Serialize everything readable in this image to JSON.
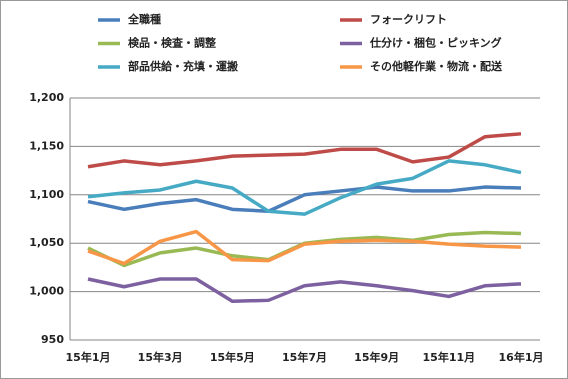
{
  "chart_data": {
    "type": "line",
    "categories": [
      "15年1月",
      null,
      "15年3月",
      null,
      "15年5月",
      null,
      "15年7月",
      null,
      "15年9月",
      null,
      "15年11月",
      null,
      "16年1月"
    ],
    "series": [
      {
        "name": "全職種",
        "color": "#4a7ebb",
        "values": [
          1093,
          1085,
          1091,
          1095,
          1085,
          1083,
          1100,
          1104,
          1108,
          1104,
          1104,
          1108,
          1107
        ]
      },
      {
        "name": "フォークリフト",
        "color": "#be4b48",
        "values": [
          1129,
          1135,
          1131,
          1135,
          1140,
          1141,
          1142,
          1147,
          1147,
          1134,
          1139,
          1160,
          1163
        ]
      },
      {
        "name": "検品・検査・調整",
        "color": "#98b954",
        "values": [
          1045,
          1027,
          1040,
          1045,
          1037,
          1033,
          1050,
          1054,
          1056,
          1053,
          1059,
          1061,
          1060
        ]
      },
      {
        "name": "仕分け・梱包・ピッキング",
        "color": "#7d60a0",
        "values": [
          1013,
          1005,
          1013,
          1013,
          990,
          991,
          1006,
          1010,
          1006,
          1001,
          995,
          1006,
          1008
        ]
      },
      {
        "name": "部品供給・充填・運搬",
        "color": "#46aac5",
        "values": [
          1098,
          1102,
          1105,
          1114,
          1107,
          1083,
          1080,
          1097,
          1111,
          1117,
          1135,
          1131,
          1123
        ]
      },
      {
        "name": "その他軽作業・物流・配送",
        "color": "#f79646",
        "values": [
          1042,
          1029,
          1052,
          1062,
          1033,
          1032,
          1049,
          1052,
          1053,
          1052,
          1049,
          1047,
          1046
        ]
      }
    ],
    "ylim": [
      950,
      1200
    ],
    "yticks": [
      950,
      {
        "value": 1000,
        "label": "1,000"
      },
      {
        "value": 1050,
        "label": "1,050"
      },
      {
        "value": 1100,
        "label": "1,100"
      },
      {
        "value": 1150,
        "label": "1,150"
      },
      {
        "value": 1200,
        "label": "1,200"
      }
    ],
    "grid": true,
    "legend": "top"
  }
}
